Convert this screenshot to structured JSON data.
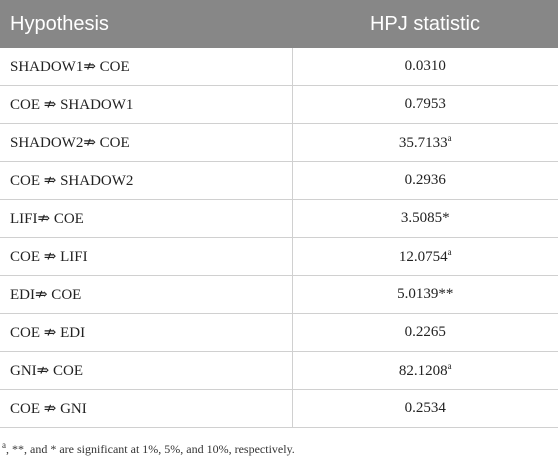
{
  "table": {
    "columns": [
      "Hypothesis",
      "HPJ statistic"
    ],
    "rows": [
      {
        "hypothesis": "SHADOW1⇏ COE",
        "statistic": "0.0310"
      },
      {
        "hypothesis": "COE ⇏ SHADOW1",
        "statistic": "0.7953"
      },
      {
        "hypothesis": "SHADOW2⇏ COE",
        "statistic": "35.7133",
        "note": "a"
      },
      {
        "hypothesis": "COE ⇏ SHADOW2",
        "statistic": "0.2936"
      },
      {
        "hypothesis": "LIFI⇏ COE",
        "statistic": "3.5085*"
      },
      {
        "hypothesis": "COE ⇏ LIFI",
        "statistic": "12.0754",
        "note": "a"
      },
      {
        "hypothesis": "EDI⇏ COE",
        "statistic": "5.0139**"
      },
      {
        "hypothesis": "COE ⇏ EDI",
        "statistic": "0.2265"
      },
      {
        "hypothesis": "GNI⇏ COE",
        "statistic": "82.1208",
        "note": "a"
      },
      {
        "hypothesis": "COE ⇏ GNI",
        "statistic": "0.2534"
      }
    ]
  },
  "footnote": {
    "mark": "a",
    "text": ", **, and * are significant at 1%, 5%, and 10%, respectively."
  }
}
